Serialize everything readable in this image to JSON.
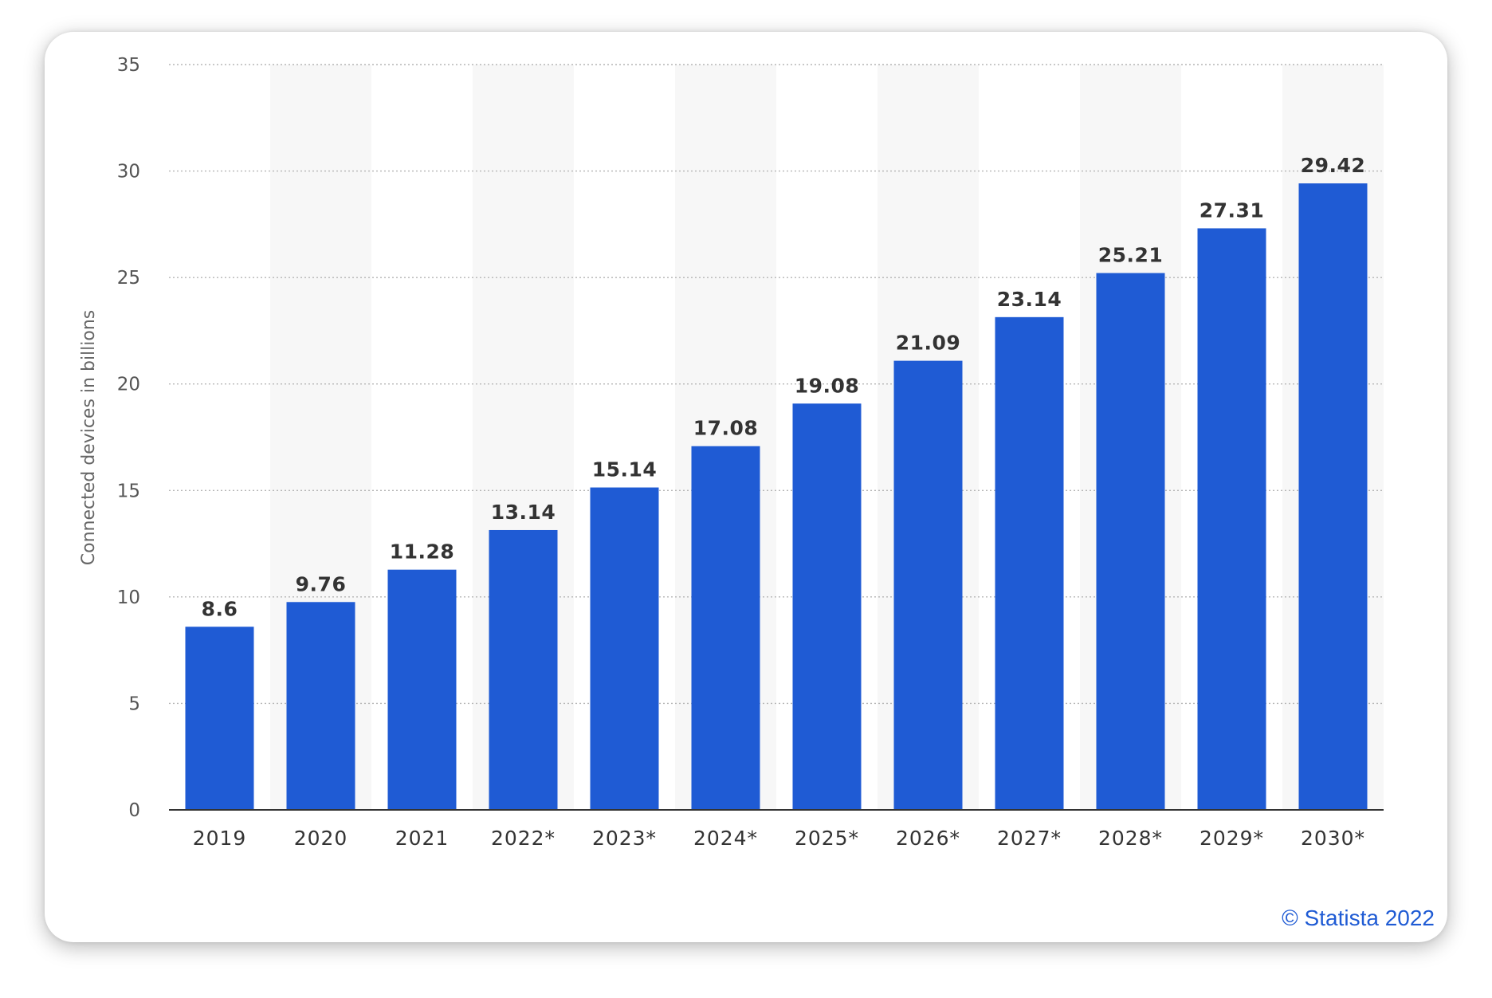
{
  "chart_data": {
    "type": "bar",
    "categories": [
      "2019",
      "2020",
      "2021",
      "2022*",
      "2023*",
      "2024*",
      "2025*",
      "2026*",
      "2027*",
      "2028*",
      "2029*",
      "2030*"
    ],
    "values": [
      8.6,
      9.76,
      11.28,
      13.14,
      15.14,
      17.08,
      19.08,
      21.09,
      23.14,
      25.21,
      27.31,
      29.42
    ],
    "value_labels": [
      "8.6",
      "9.76",
      "11.28",
      "13.14",
      "15.14",
      "17.08",
      "19.08",
      "21.09",
      "23.14",
      "25.21",
      "27.31",
      "29.42"
    ],
    "yticks": [
      "0",
      "5",
      "10",
      "15",
      "20",
      "25",
      "30",
      "35"
    ],
    "ylim": [
      0,
      35
    ],
    "ylabel": "Connected devices in billions",
    "grid": true,
    "bar_color": "#1f5bd4",
    "band_color": "#f7f7f7"
  },
  "credit": "© Statista 2022"
}
